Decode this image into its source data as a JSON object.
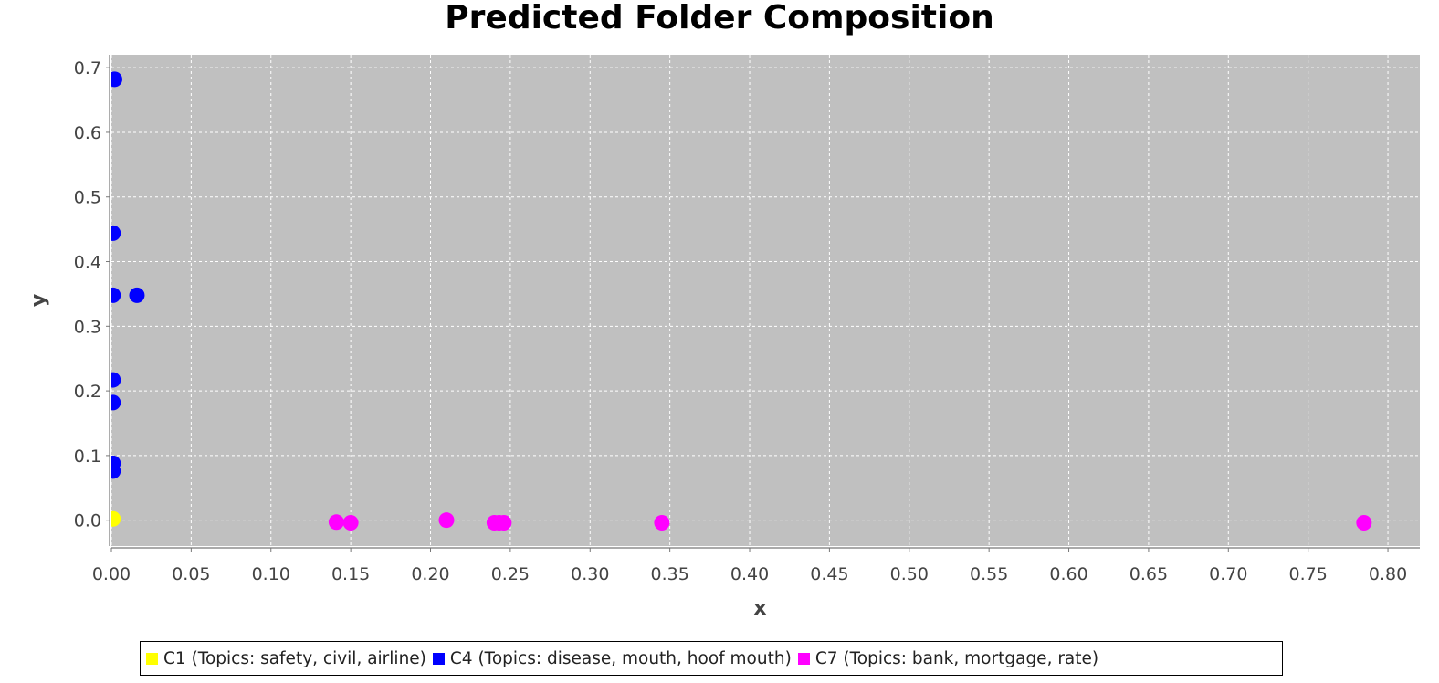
{
  "chart_data": {
    "type": "scatter",
    "title": "Predicted Folder Composition",
    "xlabel": "x",
    "ylabel": "y",
    "xlim": [
      0.0,
      0.82
    ],
    "ylim": [
      -0.04,
      0.72
    ],
    "xticks": [
      "0.00",
      "0.05",
      "0.10",
      "0.15",
      "0.20",
      "0.25",
      "0.30",
      "0.35",
      "0.40",
      "0.45",
      "0.50",
      "0.55",
      "0.60",
      "0.65",
      "0.70",
      "0.75",
      "0.80"
    ],
    "yticks": [
      "0.0",
      "0.1",
      "0.2",
      "0.3",
      "0.4",
      "0.5",
      "0.6",
      "0.7"
    ],
    "grid": true,
    "plot_background": "#c0c0c0",
    "legend_position": "bottom",
    "series": [
      {
        "name": "C1 (Topics: safety, civil, airline)",
        "color": "#ffff00",
        "points": [
          [
            0.001,
            0.002
          ]
        ]
      },
      {
        "name": "C4 (Topics: disease, mouth, hoof mouth)",
        "color": "#0000ff",
        "points": [
          [
            0.002,
            0.682
          ],
          [
            0.001,
            0.444
          ],
          [
            0.001,
            0.348
          ],
          [
            0.016,
            0.348
          ],
          [
            0.001,
            0.217
          ],
          [
            0.001,
            0.182
          ],
          [
            0.001,
            0.088
          ],
          [
            0.001,
            0.076
          ]
        ]
      },
      {
        "name": "C7 (Topics: bank, mortgage, rate)",
        "color": "#ff00ff",
        "points": [
          [
            0.141,
            -0.003
          ],
          [
            0.15,
            -0.004
          ],
          [
            0.21,
            0.0
          ],
          [
            0.24,
            -0.004
          ],
          [
            0.243,
            -0.004
          ],
          [
            0.246,
            -0.004
          ],
          [
            0.345,
            -0.004
          ],
          [
            0.785,
            -0.004
          ]
        ]
      }
    ]
  }
}
